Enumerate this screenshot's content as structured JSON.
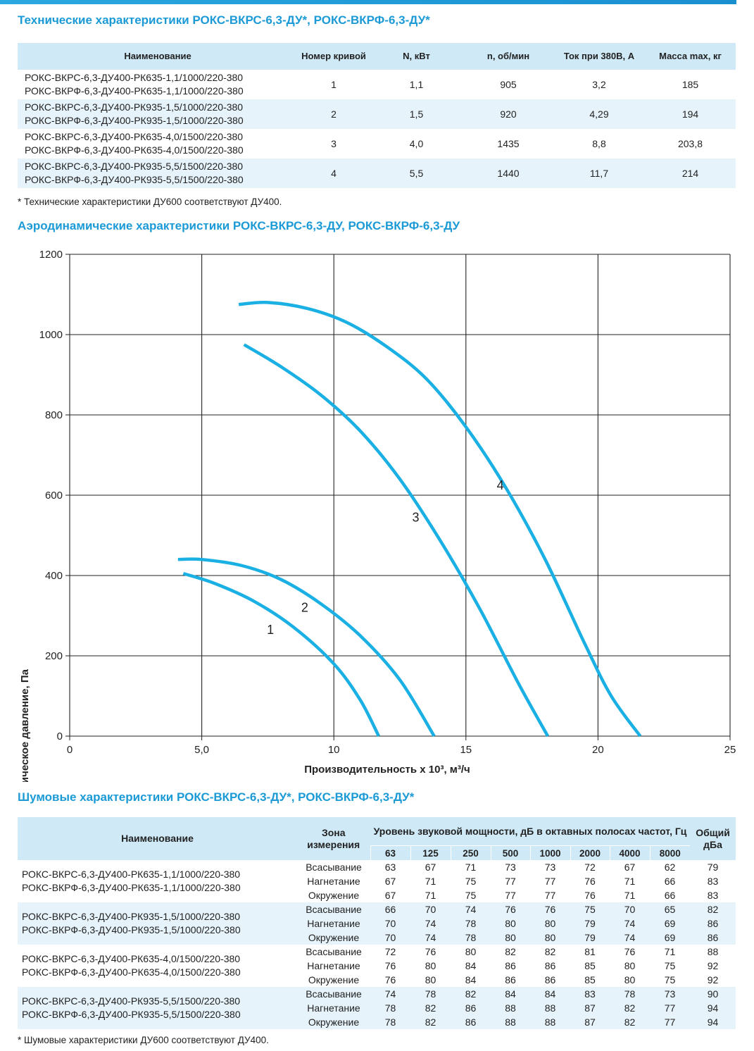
{
  "spec": {
    "title": "Технические характеристики РОКС-ВКРС-6,3-ДУ*, РОКС-ВКРФ-6,3-ДУ*",
    "headers": [
      "Наименование",
      "Номер кривой",
      "N, кВт",
      "n, об/мин",
      "Ток при 380В, А",
      "Масса max, кг"
    ],
    "rows": [
      {
        "name1": "РОКС-ВКРС-6,3-ДУ400-РК635-1,1/1000/220-380",
        "name2": "РОКС-ВКРФ-6,3-ДУ400-РК635-1,1/1000/220-380",
        "curve": "1",
        "power": "1,1",
        "rpm": "905",
        "current": "3,2",
        "mass": "185"
      },
      {
        "name1": "РОКС-ВКРС-6,3-ДУ400-РК935-1,5/1000/220-380",
        "name2": "РОКС-ВКРФ-6,3-ДУ400-РК935-1,5/1000/220-380",
        "curve": "2",
        "power": "1,5",
        "rpm": "920",
        "current": "4,29",
        "mass": "194"
      },
      {
        "name1": "РОКС-ВКРС-6,3-ДУ400-РК635-4,0/1500/220-380",
        "name2": "РОКС-ВКРФ-6,3-ДУ400-РК635-4,0/1500/220-380",
        "curve": "3",
        "power": "4,0",
        "rpm": "1435",
        "current": "8,8",
        "mass": "203,8"
      },
      {
        "name1": "РОКС-ВКРС-6,3-ДУ400-РК935-5,5/1500/220-380",
        "name2": "РОКС-ВКРФ-6,3-ДУ400-РК935-5,5/1500/220-380",
        "curve": "4",
        "power": "5,5",
        "rpm": "1440",
        "current": "11,7",
        "mass": "214"
      }
    ],
    "footnote": "* Технические характеристики ДУ600 соответствуют ДУ400."
  },
  "aero": {
    "title": "Аэродинамические характеристики РОКС-ВКРС-6,3-ДУ, РОКС-ВКРФ-6,3-ДУ"
  },
  "chart_data": {
    "type": "line",
    "title": "Аэродинамические характеристики РОКС-ВКРС-6,3-ДУ, РОКС-ВКРФ-6,3-ДУ",
    "xlabel": "Производительность х 10³, м³/ч",
    "ylabel": "Статическое давление, Па",
    "xlim": [
      0,
      25
    ],
    "ylim": [
      0,
      1200
    ],
    "xticks": [
      0,
      5,
      10,
      15,
      20,
      25
    ],
    "xtick_labels": [
      "0",
      "5,0",
      "10",
      "15",
      "20",
      "25"
    ],
    "yticks": [
      0,
      200,
      400,
      600,
      800,
      1000,
      1200
    ],
    "ytick_labels": [
      "0",
      "200",
      "400",
      "600",
      "800",
      "1000",
      "1200"
    ],
    "grid": true,
    "line_color": "#1bb0e3",
    "series": [
      {
        "name": "1",
        "points": [
          [
            4.3,
            405
          ],
          [
            5.5,
            380
          ],
          [
            7,
            335
          ],
          [
            8.5,
            270
          ],
          [
            10,
            180
          ],
          [
            11,
            90
          ],
          [
            11.7,
            0
          ]
        ]
      },
      {
        "name": "2",
        "points": [
          [
            4.1,
            440
          ],
          [
            5,
            440
          ],
          [
            6.5,
            425
          ],
          [
            8,
            390
          ],
          [
            9.5,
            330
          ],
          [
            11,
            250
          ],
          [
            12.5,
            140
          ],
          [
            13.8,
            0
          ]
        ]
      },
      {
        "name": "3",
        "points": [
          [
            6.6,
            975
          ],
          [
            8,
            920
          ],
          [
            9.5,
            850
          ],
          [
            11,
            760
          ],
          [
            12.5,
            640
          ],
          [
            14,
            490
          ],
          [
            15.5,
            320
          ],
          [
            17,
            130
          ],
          [
            18.1,
            0
          ]
        ]
      },
      {
        "name": "4",
        "points": [
          [
            6.4,
            1075
          ],
          [
            7.5,
            1080
          ],
          [
            9,
            1065
          ],
          [
            10.5,
            1030
          ],
          [
            12,
            970
          ],
          [
            13.5,
            890
          ],
          [
            15,
            770
          ],
          [
            16.5,
            620
          ],
          [
            18,
            440
          ],
          [
            19.5,
            230
          ],
          [
            20.5,
            100
          ],
          [
            21.6,
            0
          ]
        ]
      }
    ],
    "labels": [
      {
        "text": "1",
        "x": 7.6,
        "y": 265
      },
      {
        "text": "2",
        "x": 8.9,
        "y": 320
      },
      {
        "text": "3",
        "x": 13.1,
        "y": 545
      },
      {
        "text": "4",
        "x": 16.3,
        "y": 625
      }
    ]
  },
  "noise": {
    "title": "Шумовые характеристики РОКС-ВКРС-6,3-ДУ*, РОКС-ВКРФ-6,3-ДУ*",
    "header_name": "Наименование",
    "header_zone": "Зона измерения",
    "header_level": "Уровень звуковой мощности, дБ в октавных полосах частот, Гц",
    "header_total": "Общий дБа",
    "freqs": [
      "63",
      "125",
      "250",
      "500",
      "1000",
      "2000",
      "4000",
      "8000"
    ],
    "groups": [
      {
        "name1": "РОКС-ВКРС-6,3-ДУ400-РК635-1,1/1000/220-380",
        "name2": "РОКС-ВКРФ-6,3-ДУ400-РК635-1,1/1000/220-380",
        "rows": [
          {
            "zone": "Всасывание",
            "v": [
              "63",
              "67",
              "71",
              "73",
              "73",
              "72",
              "67",
              "62"
            ],
            "total": "79"
          },
          {
            "zone": "Нагнетание",
            "v": [
              "67",
              "71",
              "75",
              "77",
              "77",
              "76",
              "71",
              "66"
            ],
            "total": "83"
          },
          {
            "zone": "Окружение",
            "v": [
              "67",
              "71",
              "75",
              "77",
              "77",
              "76",
              "71",
              "66"
            ],
            "total": "83"
          }
        ]
      },
      {
        "name1": "РОКС-ВКРС-6,3-ДУ400-РК935-1,5/1000/220-380",
        "name2": "РОКС-ВКРФ-6,3-ДУ400-РК935-1,5/1000/220-380",
        "rows": [
          {
            "zone": "Всасывание",
            "v": [
              "66",
              "70",
              "74",
              "76",
              "76",
              "75",
              "70",
              "65"
            ],
            "total": "82"
          },
          {
            "zone": "Нагнетание",
            "v": [
              "70",
              "74",
              "78",
              "80",
              "80",
              "79",
              "74",
              "69"
            ],
            "total": "86"
          },
          {
            "zone": "Окружение",
            "v": [
              "70",
              "74",
              "78",
              "80",
              "80",
              "79",
              "74",
              "69"
            ],
            "total": "86"
          }
        ]
      },
      {
        "name1": "РОКС-ВКРС-6,3-ДУ400-РК635-4,0/1500/220-380",
        "name2": "РОКС-ВКРФ-6,3-ДУ400-РК635-4,0/1500/220-380",
        "rows": [
          {
            "zone": "Всасывание",
            "v": [
              "72",
              "76",
              "80",
              "82",
              "82",
              "81",
              "76",
              "71"
            ],
            "total": "88"
          },
          {
            "zone": "Нагнетание",
            "v": [
              "76",
              "80",
              "84",
              "86",
              "86",
              "85",
              "80",
              "75"
            ],
            "total": "92"
          },
          {
            "zone": "Окружение",
            "v": [
              "76",
              "80",
              "84",
              "86",
              "86",
              "85",
              "80",
              "75"
            ],
            "total": "92"
          }
        ]
      },
      {
        "name1": "РОКС-ВКРС-6,3-ДУ400-РК935-5,5/1500/220-380",
        "name2": "РОКС-ВКРФ-6,3-ДУ400-РК935-5,5/1500/220-380",
        "rows": [
          {
            "zone": "Всасывание",
            "v": [
              "74",
              "78",
              "82",
              "84",
              "84",
              "83",
              "78",
              "73"
            ],
            "total": "90"
          },
          {
            "zone": "Нагнетание",
            "v": [
              "78",
              "82",
              "86",
              "88",
              "88",
              "87",
              "82",
              "77"
            ],
            "total": "94"
          },
          {
            "zone": "Окружение",
            "v": [
              "78",
              "82",
              "86",
              "88",
              "88",
              "87",
              "82",
              "77"
            ],
            "total": "94"
          }
        ]
      }
    ],
    "footnote": "* Шумовые характеристики ДУ600 соответствуют ДУ400."
  }
}
